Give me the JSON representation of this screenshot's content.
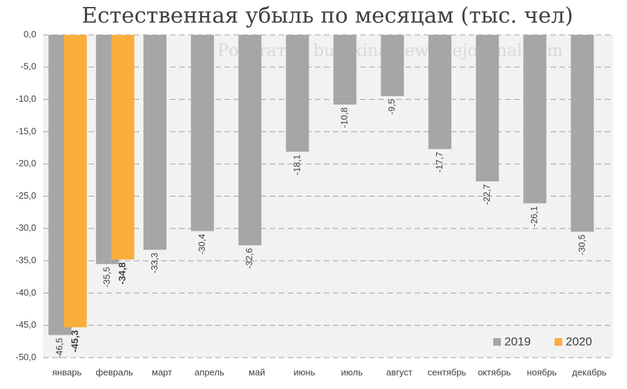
{
  "chart_data": {
    "type": "bar",
    "title": "Естественная убыль по месяцам (тыс. чел)",
    "annotation": "Росстат © burckina-new.livejournal.com",
    "categories": [
      "январь",
      "февраль",
      "март",
      "апрель",
      "май",
      "июнь",
      "июль",
      "август",
      "сентябрь",
      "октябрь",
      "ноябрь",
      "декабрь"
    ],
    "series": [
      {
        "name": "2019",
        "color": "#a6a6a6",
        "values": [
          -46.5,
          -35.5,
          -33.3,
          -30.4,
          -32.6,
          -18.1,
          -10.8,
          -9.5,
          -17.7,
          -22.7,
          -26.1,
          -30.5
        ],
        "value_labels": [
          "-46,5",
          "-35,5",
          "-33,3",
          "-30,4",
          "-32,6",
          "-18,1",
          "-10,8",
          "-9,5",
          "-17,7",
          "-22,7",
          "-26,1",
          "-30,5"
        ]
      },
      {
        "name": "2020",
        "color": "#f9ae3b",
        "values": [
          -45.3,
          -34.8,
          null,
          null,
          null,
          null,
          null,
          null,
          null,
          null,
          null,
          null
        ],
        "value_labels": [
          "-45,3",
          "-34,8",
          null,
          null,
          null,
          null,
          null,
          null,
          null,
          null,
          null,
          null
        ]
      }
    ],
    "ylim": [
      -50,
      0
    ],
    "yticks": [
      {
        "value": 0,
        "label": "0,0"
      },
      {
        "value": -5,
        "label": "-5,0"
      },
      {
        "value": -10,
        "label": "-10,0"
      },
      {
        "value": -15,
        "label": "-15,0"
      },
      {
        "value": -20,
        "label": "-20,0"
      },
      {
        "value": -25,
        "label": "-25,0"
      },
      {
        "value": -30,
        "label": "-30,0"
      },
      {
        "value": -35,
        "label": "-35,0"
      },
      {
        "value": -40,
        "label": "-40,0"
      },
      {
        "value": -45,
        "label": "-45,0"
      },
      {
        "value": -50,
        "label": "-50,0"
      }
    ],
    "grid": true,
    "legend": "lower right"
  }
}
